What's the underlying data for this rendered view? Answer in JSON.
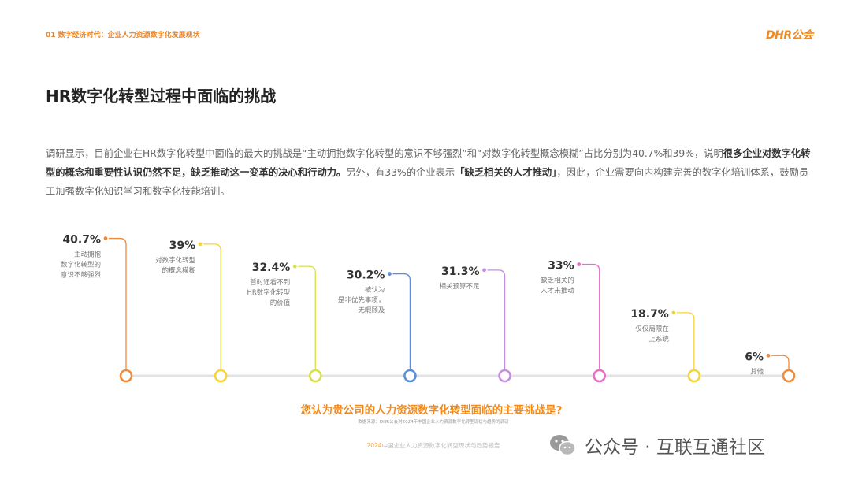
{
  "header": {
    "section_tag": "01 数字经济时代：企业人力资源数字化发展现状",
    "brand": "DHR公会"
  },
  "title": "HR数字化转型过程中面临的挑战",
  "intro": {
    "part1": "调研显示，目前企业在HR数字化转型中面临的最大的挑战是“主动拥抱数字化转型的意识不够强烈”和“对数字化转型概念模糊”占比分别为40.7%和39%，说明",
    "bold1": "很多企业对数字化转型的概念和重要性认识仍然不足，缺乏推动这一变革的决心和行动力。",
    "part2": "另外，有33%的企业表示",
    "bold2": "「缺乏相关的人才推动」",
    "part3": "，因此，企业需要向内构建完善的数字化培训体系，鼓励员工加强数字化知识学习和数字化技能培训。"
  },
  "chart_data": {
    "type": "bar",
    "categories": [
      "主动拥抱数字化转型的意识不够强烈",
      "对数字化转型的概念模糊",
      "暂时还看不到HR数字化转型的价值",
      "被认为是非优先事项，无暇顾及",
      "相关预算不足",
      "缺乏相关的人才来推动",
      "仅仅局限在上系统",
      "其他"
    ],
    "labels": [
      [
        "主动拥抱",
        "数字化转型的",
        "意识不够强烈"
      ],
      [
        "对数字化转型",
        "的概念模糊"
      ],
      [
        "暂时还看不到",
        "HR数字化转型",
        "的价值"
      ],
      [
        "被认为",
        "是非优先事项，",
        "无暇顾及"
      ],
      [
        "相关预算不足"
      ],
      [
        "缺乏相关的",
        "人才来推动"
      ],
      [
        "仅仅局限在",
        "上系统"
      ],
      [
        "其他"
      ]
    ],
    "values": [
      40.7,
      39,
      32.4,
      30.2,
      31.3,
      33,
      18.7,
      6
    ],
    "value_labels": [
      "40.7%",
      "39%",
      "32.4%",
      "30.2%",
      "31.3%",
      "33%",
      "18.7%",
      "6%"
    ],
    "colors": [
      "#f08a3c",
      "#f5d33a",
      "#d6e04a",
      "#5b8fd9",
      "#c48ee0",
      "#e96ec8",
      "#f5d33a",
      "#f08a3c"
    ],
    "unit": "%",
    "ylim": [
      0,
      42
    ],
    "title": "您认为贵公司的人力资源数字化转型面临的主要挑战是?",
    "xlabel": "",
    "ylabel": "",
    "grid": false
  },
  "footer": {
    "source": "数据来源：DHR公会对2024年中国企业人力资源数字化转型现状与趋势的调研",
    "report_year": "2024",
    "report_title": "中国企业人力资源数字化转型现状与趋势报告",
    "watermark": "公众号 · 互联互通社区"
  }
}
